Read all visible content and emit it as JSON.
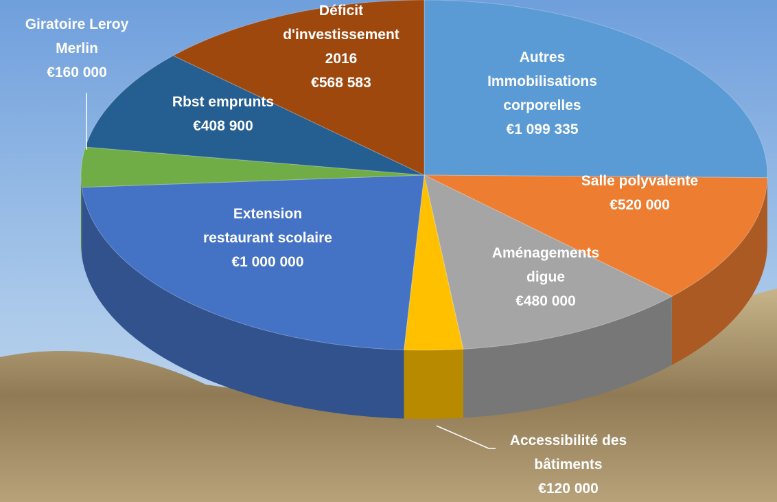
{
  "chart_data": {
    "type": "pie3d",
    "categories": [
      "Autres Immobilisations corporelles",
      "Salle polyvalente",
      "Aménagements digue",
      "Accessibilité des bâtiments",
      "Extension restaurant scolaire",
      "Giratoire Leroy Merlin",
      "Rbst emprunts",
      "Déficit d'investissement 2016"
    ],
    "values": [
      1099335,
      520000,
      480000,
      120000,
      1000000,
      160000,
      408900,
      568583
    ],
    "value_labels": [
      "€1 099 335",
      "€520 000",
      "€480 000",
      "€120 000",
      "€1 000 000",
      "€160 000",
      "€408 900",
      "€568 583"
    ],
    "colors": [
      "#5b9bd5",
      "#ed7d31",
      "#a5a5a5",
      "#ffc000",
      "#4472c4",
      "#70ad47",
      "#255e91",
      "#9e480e"
    ]
  }
}
